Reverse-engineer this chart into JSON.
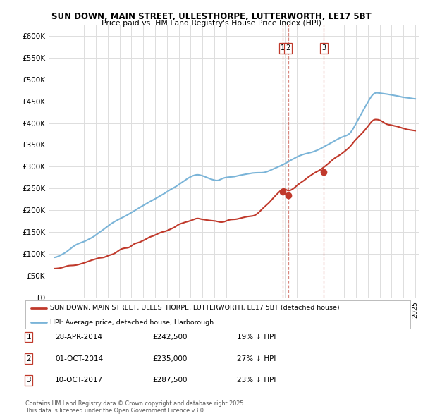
{
  "title_line1": "SUN DOWN, MAIN STREET, ULLESTHORPE, LUTTERWORTH, LE17 5BT",
  "title_line2": "Price paid vs. HM Land Registry's House Price Index (HPI)",
  "ylabel_ticks": [
    "£0",
    "£50K",
    "£100K",
    "£150K",
    "£200K",
    "£250K",
    "£300K",
    "£350K",
    "£400K",
    "£450K",
    "£500K",
    "£550K",
    "£600K"
  ],
  "ytick_values": [
    0,
    50000,
    100000,
    150000,
    200000,
    250000,
    300000,
    350000,
    400000,
    450000,
    500000,
    550000,
    600000
  ],
  "ylim": [
    0,
    625000
  ],
  "xlim_start": 1994.5,
  "xlim_end": 2025.8,
  "hpi_color": "#7ab4d8",
  "price_color": "#c0392b",
  "vline_color": "#c0392b",
  "legend_label_price": "SUN DOWN, MAIN STREET, ULLESTHORPE, LUTTERWORTH, LE17 5BT (detached house)",
  "legend_label_hpi": "HPI: Average price, detached house, Harborough",
  "sale_dates": [
    2014.32,
    2014.75,
    2017.78
  ],
  "sale_prices": [
    242500,
    235000,
    287500
  ],
  "sale_labels": [
    "1",
    "2",
    "3"
  ],
  "table_rows": [
    [
      "1",
      "28-APR-2014",
      "£242,500",
      "19% ↓ HPI"
    ],
    [
      "2",
      "01-OCT-2014",
      "£235,000",
      "27% ↓ HPI"
    ],
    [
      "3",
      "10-OCT-2017",
      "£287,500",
      "23% ↓ HPI"
    ]
  ],
  "footer_text": "Contains HM Land Registry data © Crown copyright and database right 2025.\nThis data is licensed under the Open Government Licence v3.0.",
  "bg_color": "#ffffff",
  "grid_color": "#dddddd"
}
